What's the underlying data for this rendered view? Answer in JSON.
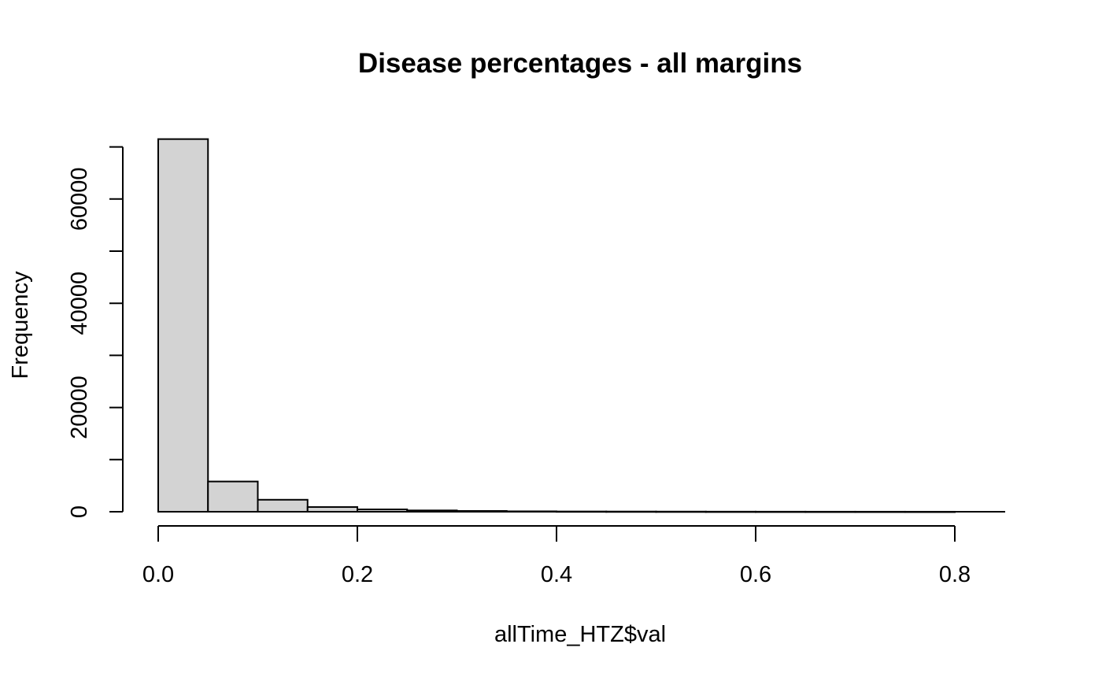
{
  "chart_data": {
    "type": "bar",
    "title": "Disease percentages - all margins",
    "xlabel": "allTime_HTZ$val",
    "ylabel": "Frequency",
    "bin_edges": [
      0,
      0.05,
      0.1,
      0.15,
      0.2,
      0.25,
      0.3,
      0.35,
      0.4,
      0.45,
      0.5,
      0.55,
      0.6,
      0.65,
      0.7,
      0.75,
      0.8
    ],
    "values": [
      71500,
      5800,
      2300,
      900,
      450,
      250,
      150,
      80,
      50,
      40,
      30,
      20,
      15,
      10,
      8,
      5
    ],
    "xlim": [
      0,
      0.8
    ],
    "ylim": [
      0,
      70000
    ],
    "x_ticks": [
      {
        "value": 0.0,
        "label": "0.0"
      },
      {
        "value": 0.2,
        "label": "0.2"
      },
      {
        "value": 0.4,
        "label": "0.4"
      },
      {
        "value": 0.6,
        "label": "0.6"
      },
      {
        "value": 0.8,
        "label": "0.8"
      }
    ],
    "y_ticks": [
      0,
      10000,
      20000,
      30000,
      40000,
      50000,
      60000,
      70000
    ],
    "y_tick_labels": [
      {
        "value": 0,
        "label": "0"
      },
      {
        "value": 20000,
        "label": "20000"
      },
      {
        "value": 40000,
        "label": "40000"
      },
      {
        "value": 60000,
        "label": "60000"
      }
    ],
    "bar_color": "#d3d3d3",
    "edge_color": "#000000",
    "grid": false
  }
}
